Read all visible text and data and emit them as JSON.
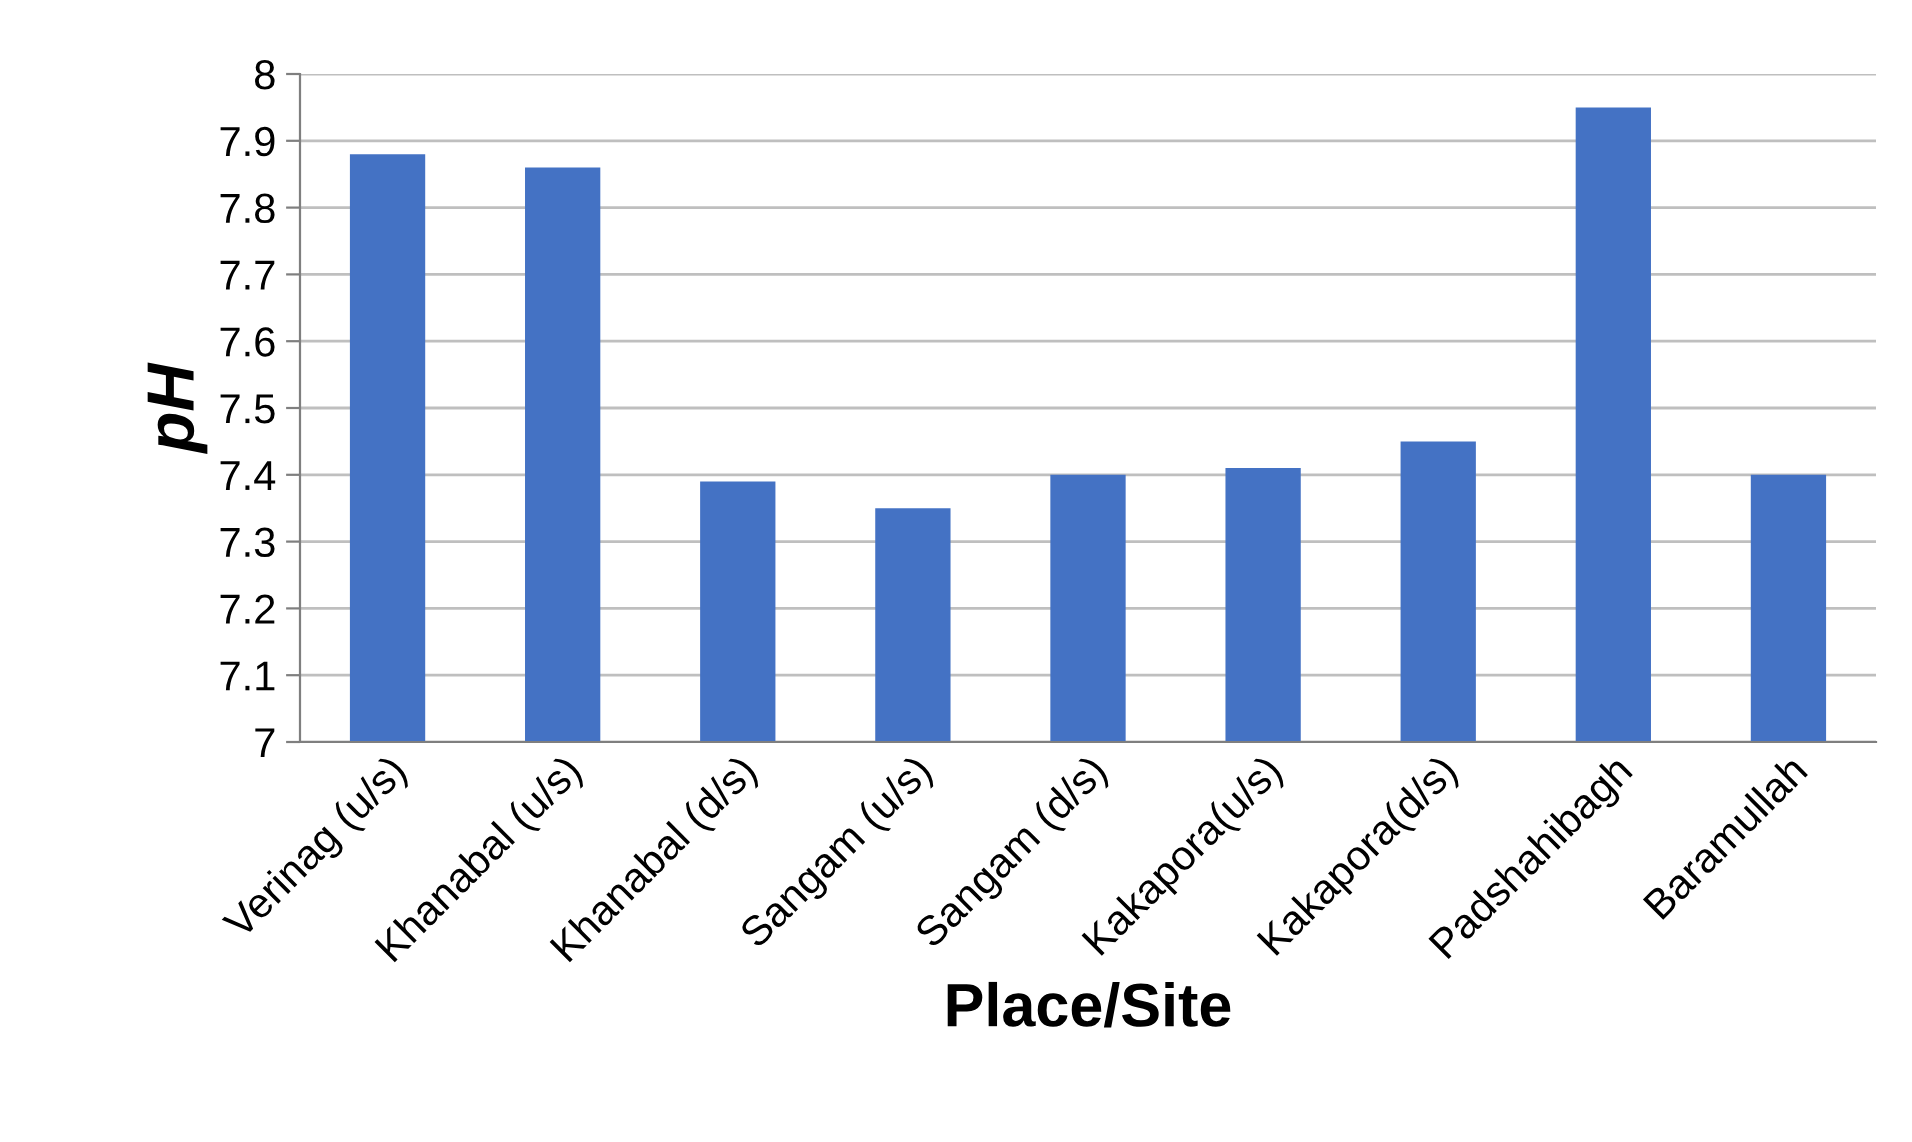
{
  "chart_data": {
    "type": "bar",
    "xlabel": "Place/Site",
    "ylabel": "pH",
    "categories": [
      "Verinag (u/s)",
      "Khanabal (u/s)",
      "Khanabal (d/s)",
      "Sangam (u/s)",
      "Sangam (d/s)",
      "Kakapora(u/s)",
      "Kakapora(d/s)",
      "Padshahibagh",
      "Baramullah"
    ],
    "values": [
      7.88,
      7.86,
      7.39,
      7.35,
      7.4,
      7.41,
      7.45,
      7.95,
      7.4
    ],
    "color": "#4472c4",
    "ylim": [
      7,
      8
    ],
    "yticks": [
      7,
      7.1,
      7.2,
      7.3,
      7.4,
      7.5,
      7.6,
      7.7,
      7.8,
      7.9,
      8
    ],
    "grid": "y"
  }
}
